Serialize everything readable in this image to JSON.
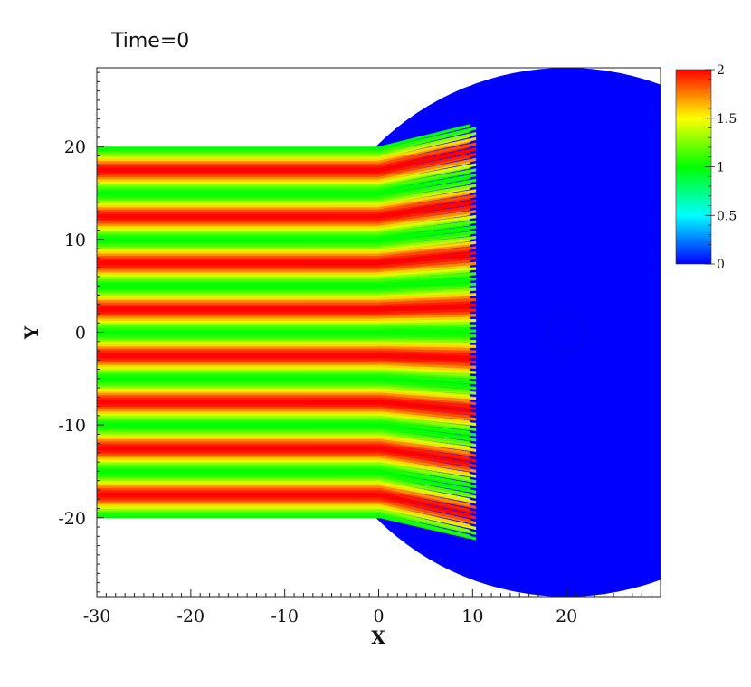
{
  "chart_data": {
    "type": "heatmap",
    "title": "Time=0",
    "xlabel": "X",
    "ylabel": "Y",
    "xlim": [
      -30,
      30
    ],
    "ylim": [
      -28.5,
      28.5
    ],
    "x_ticks": [
      -30,
      -20,
      -10,
      0,
      10,
      20
    ],
    "y_ticks": [
      -20,
      -10,
      0,
      10,
      20
    ],
    "x_tick_labels": [
      "-30",
      "-20",
      "-10",
      "0",
      "10",
      "20"
    ],
    "y_tick_labels": [
      "-20",
      "-10",
      "0",
      "10",
      "20"
    ],
    "colorbar": {
      "min": 0,
      "max": 2,
      "ticks": [
        0,
        0.5,
        1,
        1.5,
        2
      ],
      "tick_labels": [
        "0",
        "0.5",
        "1",
        "1.5",
        "2"
      ],
      "colormap": [
        "#0000ff",
        "#00ffff",
        "#00ff00",
        "#ffff00",
        "#ff0000"
      ]
    },
    "field": {
      "background_value": 0,
      "circle_center": [
        20,
        0
      ],
      "circle_radius": 28.5,
      "inner_hole_center": [
        20,
        0
      ],
      "inner_hole_radius": 2,
      "band_region_x": [
        -30,
        10
      ],
      "band_region_y": [
        -20,
        20
      ],
      "band_period": 5,
      "band_min": 1,
      "band_max": 2,
      "band_peak_y": 2.5
    }
  }
}
